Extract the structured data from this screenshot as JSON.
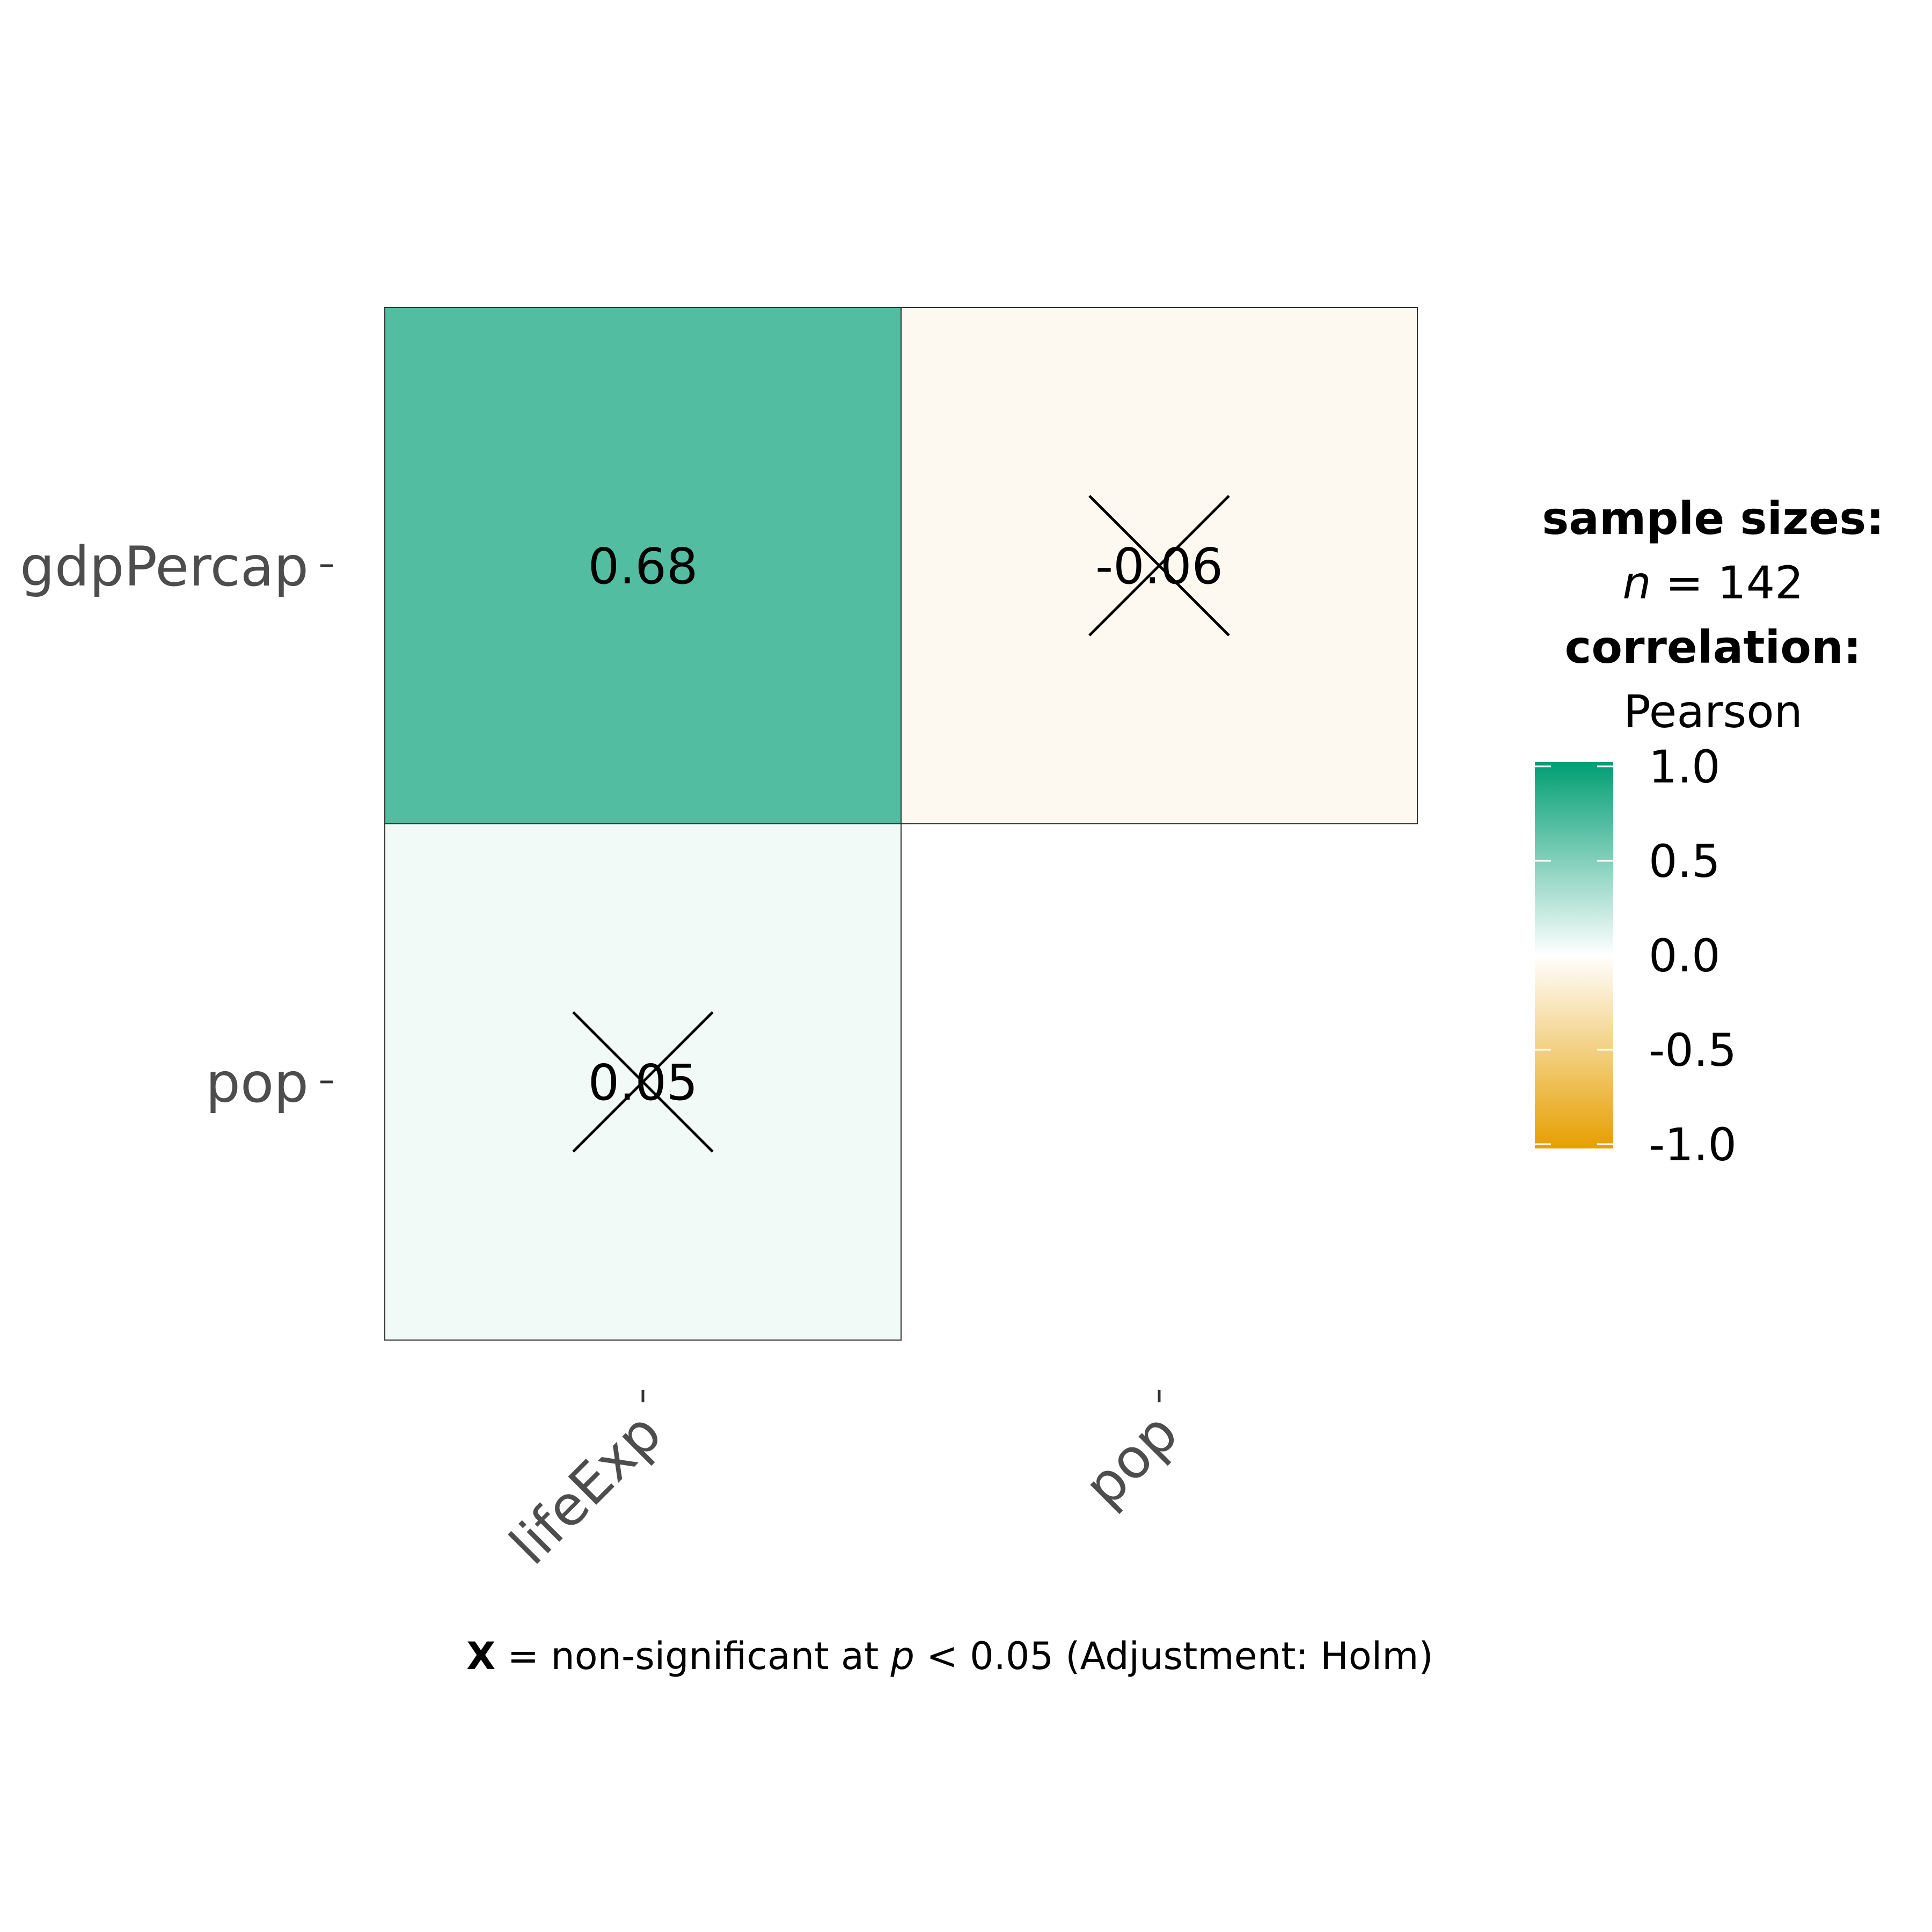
{
  "chart_data": {
    "type": "heatmap",
    "method": "Pearson",
    "x_categories": [
      "lifeExp",
      "pop"
    ],
    "y_categories": [
      "gdpPercap",
      "pop"
    ],
    "cells": [
      {
        "x": "lifeExp",
        "y": "gdpPercap",
        "value": 0.68,
        "label": "0.68",
        "significant": true
      },
      {
        "x": "pop",
        "y": "gdpPercap",
        "value": -0.06,
        "label": "-0.06",
        "significant": false
      },
      {
        "x": "lifeExp",
        "y": "pop",
        "value": 0.05,
        "label": "0.05",
        "significant": false
      }
    ],
    "legend": {
      "sample_sizes_title": "sample sizes:",
      "n_symbol": "n",
      "n_text": " = 142",
      "correlation_title": "correlation:",
      "correlation_method": "Pearson",
      "ticks": [
        1.0,
        0.5,
        0.0,
        -0.5,
        -1.0
      ],
      "tick_labels": [
        "1.0",
        "0.5",
        "0.0",
        "-0.5",
        "-1.0"
      ],
      "range": [
        -1,
        1
      ],
      "colors": {
        "high": "#009E73",
        "mid": "#FFFFFF",
        "low": "#E69F00"
      }
    },
    "caption": {
      "symbol": "X",
      "text1": " = non-significant at ",
      "p": "p",
      "text2": " < 0.05 (Adjustment: Holm)"
    },
    "grid": false
  }
}
